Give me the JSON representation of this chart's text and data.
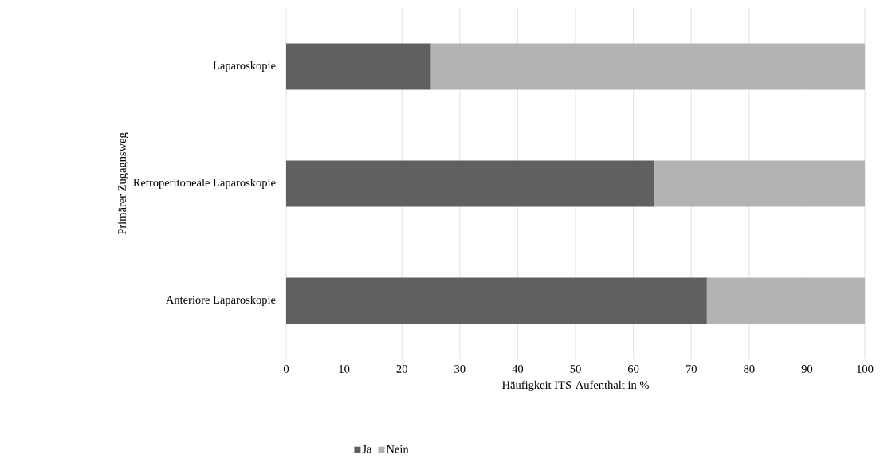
{
  "chart_data": {
    "type": "bar",
    "orientation": "horizontal",
    "stacked": true,
    "categories": [
      "Laparoskopie",
      "Retroperitoneale Laparoskopie",
      "Anteriore Laparoskopie"
    ],
    "series": [
      {
        "name": "Ja",
        "color": "#606060",
        "values": [
          25,
          63.6,
          72.7
        ]
      },
      {
        "name": "Nein",
        "color": "#b3b3b3",
        "values": [
          75,
          36.4,
          27.3
        ]
      }
    ],
    "xlabel": "Häufigkeit ITS-Aufenthalt in %",
    "ylabel": "Primärer Zugagnsweg",
    "xlim": [
      0,
      100
    ],
    "xticks": [
      0,
      10,
      20,
      30,
      40,
      50,
      60,
      70,
      80,
      90,
      100
    ],
    "grid": "x",
    "legend": "bottom"
  }
}
